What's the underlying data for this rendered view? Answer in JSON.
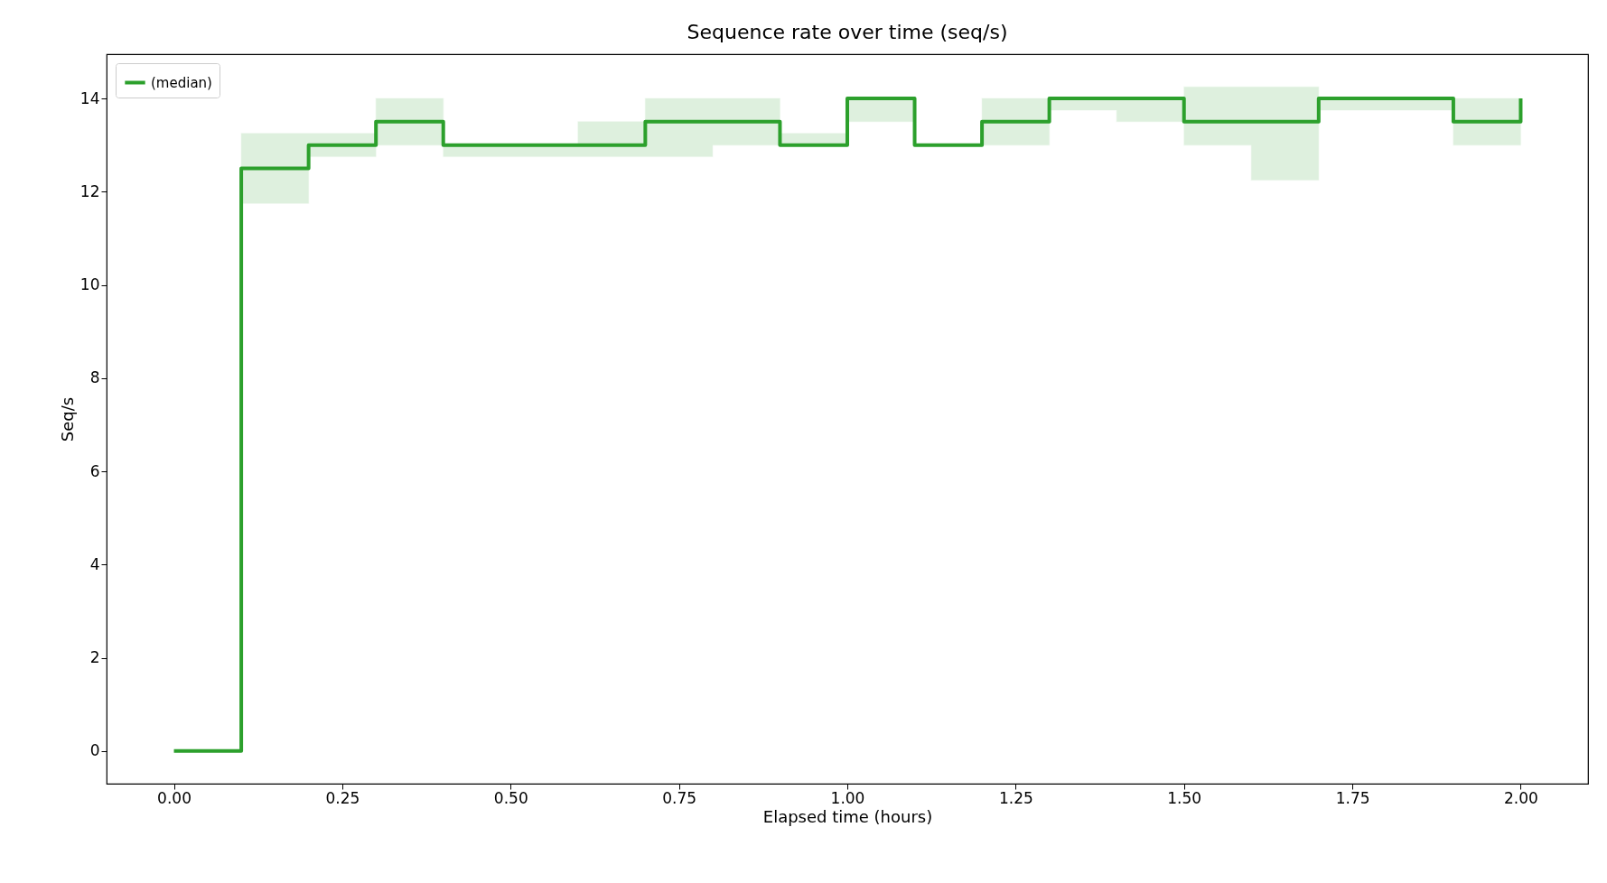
{
  "chart_data": {
    "type": "step",
    "title": "Sequence rate over time (seq/s)",
    "xlabel": "Elapsed time (hours)",
    "ylabel": "Seq/s",
    "x": [
      0,
      0.1,
      0.2,
      0.3,
      0.4,
      0.5,
      0.6,
      0.7,
      0.8,
      0.9,
      1.0,
      1.1,
      1.2,
      1.3,
      1.4,
      1.5,
      1.6,
      1.7,
      1.8,
      1.9,
      2.0
    ],
    "series": [
      {
        "name": "(median)",
        "color": "#2ca02c",
        "values": [
          0,
          12.5,
          13,
          13.5,
          13,
          13,
          13,
          13.5,
          13.5,
          13,
          14,
          13,
          13.5,
          14,
          14,
          13.5,
          13.5,
          14,
          14,
          13.5,
          14
        ],
        "lower": [
          0,
          11.75,
          12.75,
          13,
          12.75,
          12.75,
          12.75,
          12.75,
          13,
          13,
          13.5,
          13,
          13,
          13.75,
          13.5,
          13,
          12.25,
          13.75,
          13.75,
          13,
          13
        ],
        "upper": [
          0,
          13.25,
          13.25,
          14,
          13,
          13,
          13.5,
          14,
          14,
          13.25,
          14,
          13,
          14,
          14,
          14,
          14.25,
          14.25,
          14,
          14,
          14,
          14
        ]
      }
    ],
    "xlim": [
      -0.1,
      2.1
    ],
    "xticks": [
      {
        "value": 0,
        "label": "0.00"
      },
      {
        "value": 0.25,
        "label": "0.25"
      },
      {
        "value": 0.5,
        "label": "0.50"
      },
      {
        "value": 0.75,
        "label": "0.75"
      },
      {
        "value": 1,
        "label": "1.00"
      },
      {
        "value": 1.25,
        "label": "1.25"
      },
      {
        "value": 1.5,
        "label": "1.50"
      },
      {
        "value": 1.75,
        "label": "1.75"
      },
      {
        "value": 2,
        "label": "2.00"
      }
    ],
    "ylim": [
      -0.7,
      14.95
    ],
    "yticks": [
      0,
      2,
      4,
      6,
      8,
      10,
      12,
      14
    ],
    "legend": "top left",
    "grid": false
  }
}
